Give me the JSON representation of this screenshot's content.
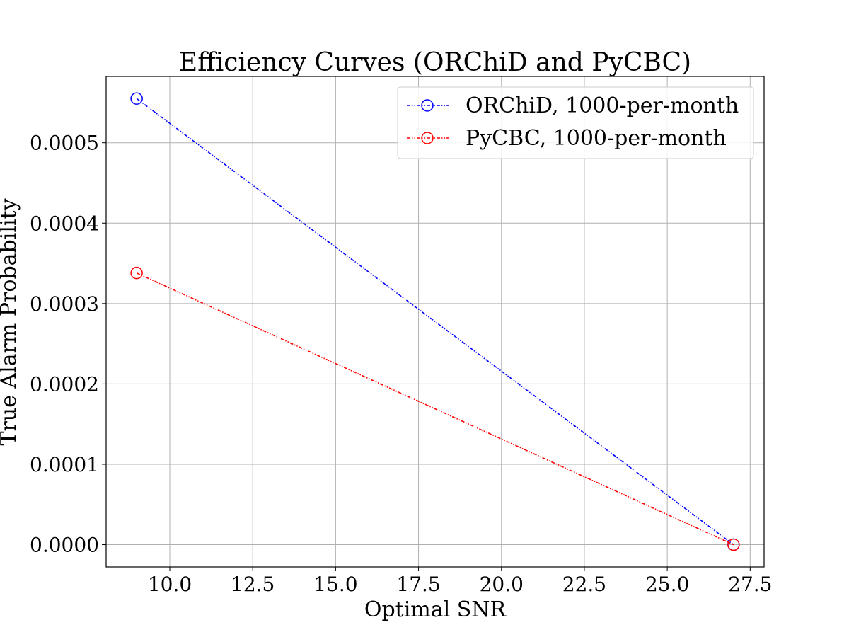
{
  "chart_data": {
    "type": "line",
    "title": "Efficiency Curves (ORChiD and PyCBC)",
    "xlabel": "Optimal SNR",
    "ylabel": "True Alarm Probability",
    "xlim": [
      8.08,
      27.92
    ],
    "ylim": [
      -2.77e-05,
      0.0005825
    ],
    "xticks": [
      10.0,
      12.5,
      15.0,
      17.5,
      20.0,
      22.5,
      25.0,
      27.5
    ],
    "xtick_labels": [
      "10.0",
      "12.5",
      "15.0",
      "17.5",
      "20.0",
      "22.5",
      "25.0",
      "27.5"
    ],
    "yticks": [
      0.0,
      0.0001,
      0.0002,
      0.0003,
      0.0004,
      0.0005
    ],
    "ytick_labels": [
      "0.0000",
      "0.0001",
      "0.0002",
      "0.0003",
      "0.0004",
      "0.0005"
    ],
    "grid": true,
    "legend_position": "upper-right",
    "series": [
      {
        "name": "ORChiD, 1000-per-month",
        "color": "#0000ff",
        "x": [
          9.0,
          27.0
        ],
        "y": [
          0.000555,
          0.0
        ]
      },
      {
        "name": "PyCBC, 1000-per-month",
        "color": "#ff0000",
        "x": [
          9.0,
          27.0
        ],
        "y": [
          0.000338,
          0.0
        ]
      }
    ]
  }
}
